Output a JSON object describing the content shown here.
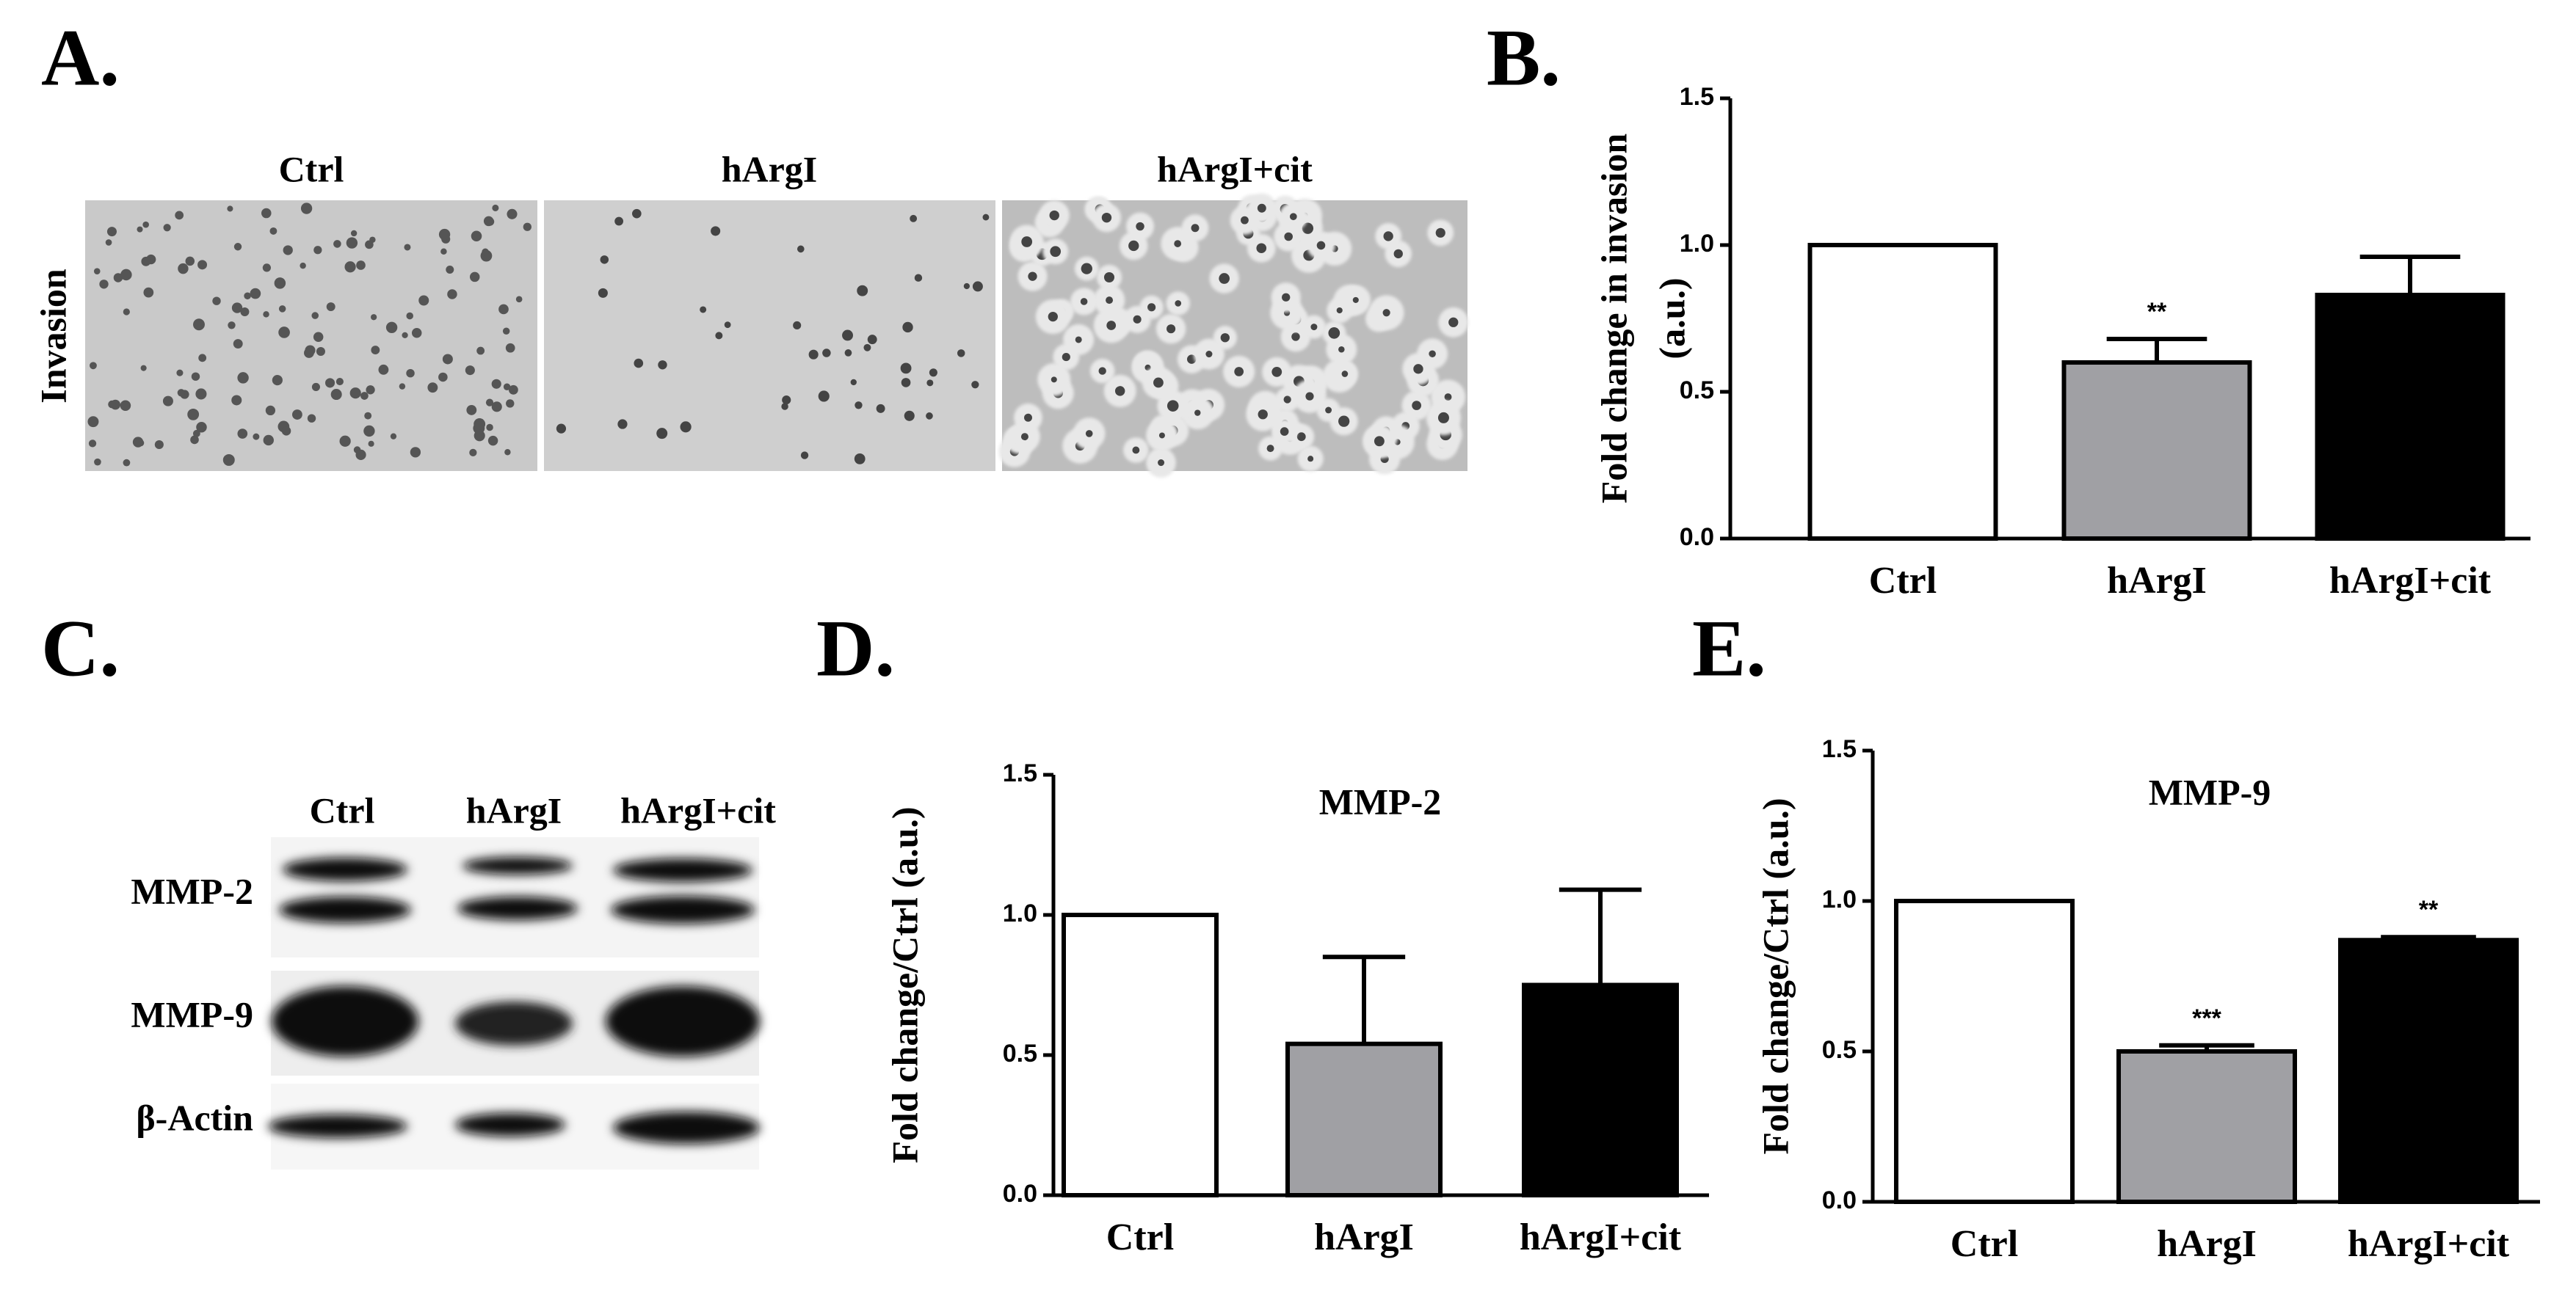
{
  "figure": {
    "panel_labels": [
      "A.",
      "B.",
      "C.",
      "D.",
      "E."
    ],
    "microscopy": {
      "row_label": "Invasion",
      "columns": [
        "Ctrl",
        "hArgI",
        "hArgI+cit"
      ]
    },
    "blot": {
      "lanes": [
        "Ctrl",
        "hArgI",
        "hArgI+cit"
      ],
      "rows": [
        "MMP-2",
        "MMP-9",
        "β-Actin"
      ]
    }
  },
  "chart_data": [
    {
      "type": "bar",
      "ylabel": [
        "Fold change in invasion",
        "(a.u.)"
      ],
      "categories": [
        "Ctrl",
        "hArgI",
        "hArgI+cit"
      ],
      "values": [
        1.0,
        0.6,
        0.83
      ],
      "errors": [
        0,
        0.08,
        0.13
      ],
      "colors": [
        "#ffffff",
        "#a0a0a4",
        "#000000"
      ],
      "significance": [
        null,
        "**",
        null
      ],
      "ylim": [
        0,
        1.5
      ],
      "yticks": [
        {
          "value": 0,
          "label": "0.0"
        },
        {
          "value": 0.5,
          "label": "0.5"
        },
        {
          "value": 1,
          "label": "1.0"
        },
        {
          "value": 1.5,
          "label": "1.5"
        }
      ]
    },
    {
      "type": "bar",
      "title": "MMP-2",
      "ylabel": [
        "Fold change/Ctrl (a.u.)"
      ],
      "categories": [
        "Ctrl",
        "hArgI",
        "hArgI+cit"
      ],
      "values": [
        1.0,
        0.54,
        0.75
      ],
      "errors": [
        0,
        0.31,
        0.34
      ],
      "colors": [
        "#ffffff",
        "#a0a0a4",
        "#000000"
      ],
      "significance": [
        null,
        null,
        null
      ],
      "ylim": [
        0,
        1.5
      ],
      "yticks": [
        {
          "value": 0,
          "label": "0.0"
        },
        {
          "value": 0.5,
          "label": "0.5"
        },
        {
          "value": 1,
          "label": "1.0"
        },
        {
          "value": 1.5,
          "label": "1.5"
        }
      ]
    },
    {
      "type": "bar",
      "title": "MMP-9",
      "ylabel": [
        "Fold change/Ctrl (a.u.)"
      ],
      "categories": [
        "Ctrl",
        "hArgI",
        "hArgI+cit"
      ],
      "values": [
        1.0,
        0.5,
        0.87
      ],
      "errors": [
        0,
        0.02,
        0.01
      ],
      "colors": [
        "#ffffff",
        "#a0a0a4",
        "#000000"
      ],
      "significance": [
        null,
        "***",
        "**"
      ],
      "ylim": [
        0,
        1.5
      ],
      "yticks": [
        {
          "value": 0,
          "label": "0.0"
        },
        {
          "value": 0.5,
          "label": "0.5"
        },
        {
          "value": 1,
          "label": "1.0"
        },
        {
          "value": 1.5,
          "label": "1.5"
        }
      ]
    }
  ]
}
